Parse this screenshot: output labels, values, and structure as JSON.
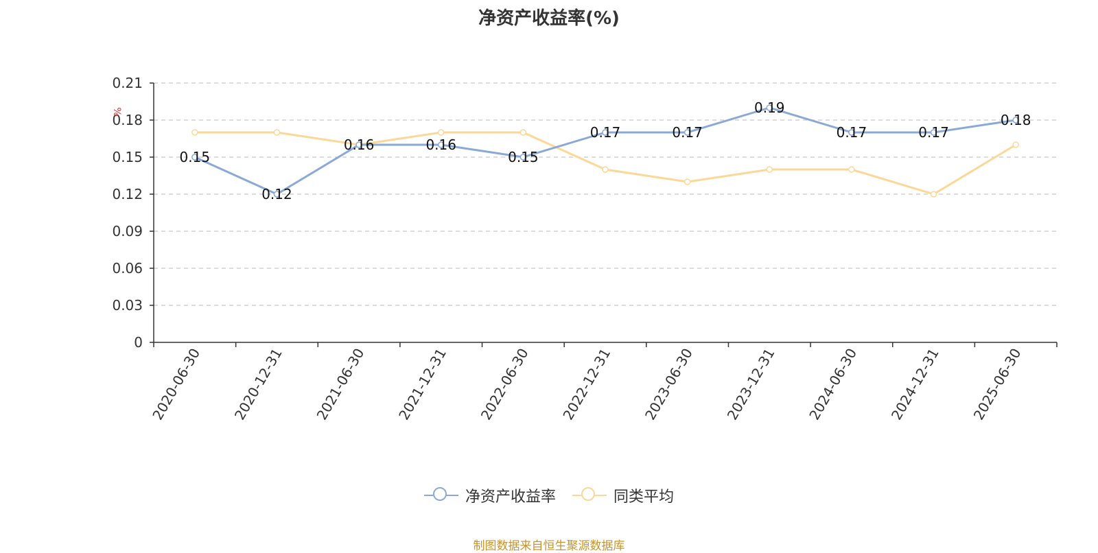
{
  "chart_data": {
    "type": "line",
    "title": "净资产收益率(%)",
    "ylabel": "%",
    "xlabel": "",
    "categories": [
      "2020-06-30",
      "2020-12-31",
      "2021-06-30",
      "2021-12-31",
      "2022-06-30",
      "2022-12-31",
      "2023-06-30",
      "2023-12-31",
      "2024-06-30",
      "2024-12-31",
      "2025-06-30"
    ],
    "y_ticks": [
      "0",
      "0.03",
      "0.06",
      "0.09",
      "0.12",
      "0.15",
      "0.18",
      "0.21"
    ],
    "ylim": [
      0,
      0.21
    ],
    "grid": true,
    "legend_position": "bottom",
    "series": [
      {
        "name": "净资产收益率",
        "color": "#8aa9d6",
        "values": [
          0.15,
          0.12,
          0.16,
          0.16,
          0.15,
          0.17,
          0.17,
          0.19,
          0.17,
          0.17,
          0.18
        ],
        "labels": [
          "0.15",
          "0.12",
          "0.16",
          "0.16",
          "0.15",
          "0.17",
          "0.17",
          "0.19",
          "0.17",
          "0.17",
          "0.18"
        ]
      },
      {
        "name": "同类平均",
        "color": "#fbd898",
        "values": [
          0.17,
          0.17,
          0.16,
          0.17,
          0.17,
          0.14,
          0.13,
          0.14,
          0.14,
          0.12,
          0.16
        ]
      }
    ]
  },
  "footer": {
    "source": "制图数据来自恒生聚源数据库"
  }
}
